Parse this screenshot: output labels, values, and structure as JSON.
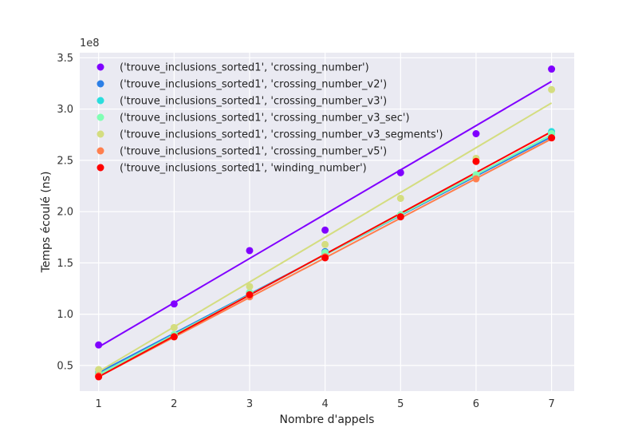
{
  "chart_data": {
    "type": "scatter",
    "xlabel": "Nombre d'appels",
    "ylabel": "Temps écoulé (ns)",
    "y_offset_label": "1e8",
    "xlim": [
      0.75,
      7.3
    ],
    "ylim": [
      0.25,
      3.55
    ],
    "x_ticks": [
      1,
      2,
      3,
      4,
      5,
      6,
      7
    ],
    "y_ticks": [
      0.5,
      1.0,
      1.5,
      2.0,
      2.5,
      3.0,
      3.5
    ],
    "x_tick_labels": [
      "1",
      "2",
      "3",
      "4",
      "5",
      "6",
      "7"
    ],
    "y_tick_labels": [
      "0.5",
      "1.0",
      "1.5",
      "2.0",
      "2.5",
      "3.0",
      "3.5"
    ],
    "grid": true,
    "legend_position": "top-left",
    "x": [
      1,
      2,
      3,
      4,
      5,
      6,
      7
    ],
    "series": [
      {
        "name": "('trouve_inclusions_sorted1', 'crossing_number')",
        "color": "#8000ff",
        "values": [
          0.7,
          1.1,
          1.62,
          1.82,
          2.38,
          2.76,
          3.39
        ],
        "fit": [
          0.68,
          3.27
        ]
      },
      {
        "name": "('trouve_inclusions_sorted1', 'crossing_number_v2')",
        "color": "#2c7fe6",
        "values": [
          0.43,
          0.8,
          1.21,
          1.61,
          1.96,
          2.35,
          2.76
        ],
        "fit": [
          0.43,
          2.73
        ]
      },
      {
        "name": "('trouve_inclusions_sorted1', 'crossing_number_v3')",
        "color": "#2adddd",
        "values": [
          0.42,
          0.79,
          1.2,
          1.59,
          1.96,
          2.35,
          2.78
        ],
        "fit": [
          0.41,
          2.75
        ]
      },
      {
        "name": "('trouve_inclusions_sorted1', 'crossing_number_v3_sec')",
        "color": "#80ffb4",
        "values": [
          0.42,
          0.8,
          1.21,
          1.6,
          1.97,
          2.36,
          2.76
        ],
        "fit": [
          0.41,
          2.75
        ]
      },
      {
        "name": "('trouve_inclusions_sorted1', 'crossing_number_v3_segments')",
        "color": "#d4dd80",
        "values": [
          0.46,
          0.87,
          1.27,
          1.68,
          2.13,
          2.52,
          3.19
        ],
        "fit": [
          0.44,
          3.06
        ]
      },
      {
        "name": "('trouve_inclusions_sorted1', 'crossing_number_v5')",
        "color": "#ff7f4e",
        "values": [
          0.4,
          0.78,
          1.17,
          1.56,
          1.95,
          2.32,
          2.72
        ],
        "fit": [
          0.39,
          2.71
        ]
      },
      {
        "name": "('trouve_inclusions_sorted1', 'winding_number')",
        "color": "#ff0000",
        "values": [
          0.39,
          0.78,
          1.19,
          1.55,
          1.95,
          2.49,
          2.72
        ],
        "fit": [
          0.39,
          2.78
        ]
      }
    ]
  }
}
